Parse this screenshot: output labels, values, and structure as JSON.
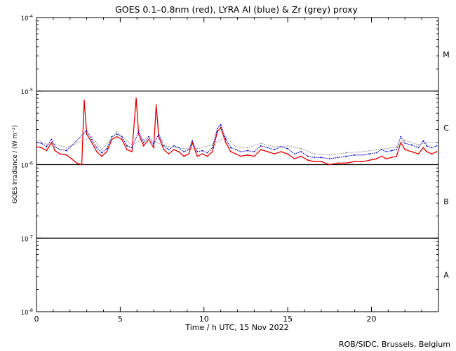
{
  "chart_data": {
    "type": "scatter",
    "title": "GOES 0.1–0.8nm (red), LYRA Al (blue) & Zr (grey) proxy",
    "xlabel": "Time / h UTC, 15 Nov 2022",
    "ylabel": "GOES Irradiance / (W m⁻²)",
    "footer": "ROB/SIDC, Brussels, Belgium",
    "xlim": [
      0,
      24
    ],
    "ylim": [
      1e-08,
      0.0001
    ],
    "yscale": "log",
    "xticks": [
      0,
      5,
      10,
      15,
      20
    ],
    "yticks": [
      {
        "value": 1e-08,
        "base": "10",
        "exp": "-8"
      },
      {
        "value": 1e-07,
        "base": "10",
        "exp": "-7"
      },
      {
        "value": 1e-06,
        "base": "10",
        "exp": "-6"
      },
      {
        "value": 1e-05,
        "base": "10",
        "exp": "-5"
      },
      {
        "value": 0.0001,
        "base": "10",
        "exp": "-4"
      }
    ],
    "thresholds": [
      1e-07,
      1e-06,
      1e-05
    ],
    "flare_classes": [
      {
        "label": "A",
        "y": 3.16e-08
      },
      {
        "label": "B",
        "y": 3.16e-07
      },
      {
        "label": "C",
        "y": 3.16e-06
      },
      {
        "label": "M",
        "y": 3.16e-05
      }
    ],
    "series": [
      {
        "name": "GOES 0.1–0.8nm",
        "color": "#e00000",
        "points": [
          [
            0.0,
            1.75e-06
          ],
          [
            0.3,
            1.7e-06
          ],
          [
            0.6,
            1.55e-06
          ],
          [
            0.9,
            2e-06
          ],
          [
            1.1,
            1.55e-06
          ],
          [
            1.4,
            1.4e-06
          ],
          [
            1.8,
            1.35e-06
          ],
          [
            2.1,
            1.2e-06
          ],
          [
            2.4,
            1.05e-06
          ],
          [
            2.7,
            1e-06
          ],
          [
            2.85,
            7.5e-06
          ],
          [
            3.0,
            2.6e-06
          ],
          [
            3.3,
            2e-06
          ],
          [
            3.6,
            1.5e-06
          ],
          [
            3.9,
            1.3e-06
          ],
          [
            4.2,
            1.5e-06
          ],
          [
            4.5,
            2.2e-06
          ],
          [
            4.8,
            2.4e-06
          ],
          [
            5.1,
            2.2e-06
          ],
          [
            5.4,
            1.6e-06
          ],
          [
            5.7,
            1.5e-06
          ],
          [
            5.95,
            8e-06
          ],
          [
            6.1,
            2.6e-06
          ],
          [
            6.4,
            1.8e-06
          ],
          [
            6.7,
            2.2e-06
          ],
          [
            7.0,
            1.7e-06
          ],
          [
            7.15,
            6.5e-06
          ],
          [
            7.3,
            2.4e-06
          ],
          [
            7.6,
            1.6e-06
          ],
          [
            7.9,
            1.4e-06
          ],
          [
            8.2,
            1.6e-06
          ],
          [
            8.5,
            1.5e-06
          ],
          [
            8.8,
            1.3e-06
          ],
          [
            9.1,
            1.4e-06
          ],
          [
            9.3,
            2e-06
          ],
          [
            9.6,
            1.3e-06
          ],
          [
            9.9,
            1.4e-06
          ],
          [
            10.2,
            1.3e-06
          ],
          [
            10.5,
            1.5e-06
          ],
          [
            10.8,
            2.8e-06
          ],
          [
            11.0,
            3.2e-06
          ],
          [
            11.3,
            2e-06
          ],
          [
            11.6,
            1.5e-06
          ],
          [
            11.9,
            1.4e-06
          ],
          [
            12.2,
            1.3e-06
          ],
          [
            12.6,
            1.35e-06
          ],
          [
            13.0,
            1.3e-06
          ],
          [
            13.4,
            1.6e-06
          ],
          [
            13.8,
            1.5e-06
          ],
          [
            14.2,
            1.4e-06
          ],
          [
            14.6,
            1.5e-06
          ],
          [
            15.0,
            1.4e-06
          ],
          [
            15.4,
            1.2e-06
          ],
          [
            15.8,
            1.3e-06
          ],
          [
            16.2,
            1.15e-06
          ],
          [
            16.6,
            1.1e-06
          ],
          [
            17.0,
            1.1e-06
          ],
          [
            17.5,
            1e-06
          ],
          [
            18.0,
            1.05e-06
          ],
          [
            18.5,
            1.05e-06
          ],
          [
            19.0,
            1.1e-06
          ],
          [
            19.5,
            1.1e-06
          ],
          [
            19.9,
            1.15e-06
          ],
          [
            20.3,
            1.2e-06
          ],
          [
            20.6,
            1.3e-06
          ],
          [
            20.9,
            1.2e-06
          ],
          [
            21.2,
            1.25e-06
          ],
          [
            21.5,
            1.3e-06
          ],
          [
            21.75,
            2e-06
          ],
          [
            22.0,
            1.6e-06
          ],
          [
            22.4,
            1.5e-06
          ],
          [
            22.8,
            1.4e-06
          ],
          [
            23.1,
            1.7e-06
          ],
          [
            23.3,
            1.5e-06
          ],
          [
            23.6,
            1.4e-06
          ],
          [
            23.9,
            1.5e-06
          ]
        ]
      },
      {
        "name": "LYRA Al",
        "color": "#0000c0",
        "points": [
          [
            0.0,
            2e-06
          ],
          [
            0.3,
            1.95e-06
          ],
          [
            0.6,
            1.75e-06
          ],
          [
            0.9,
            2.2e-06
          ],
          [
            1.1,
            1.75e-06
          ],
          [
            1.4,
            1.6e-06
          ],
          [
            1.8,
            1.55e-06
          ],
          [
            3.0,
            2.9e-06
          ],
          [
            3.3,
            2.2e-06
          ],
          [
            3.6,
            1.7e-06
          ],
          [
            3.9,
            1.45e-06
          ],
          [
            4.2,
            1.65e-06
          ],
          [
            4.5,
            2.4e-06
          ],
          [
            4.8,
            2.6e-06
          ],
          [
            5.1,
            2.4e-06
          ],
          [
            5.4,
            1.8e-06
          ],
          [
            5.7,
            1.7e-06
          ],
          [
            6.1,
            2.8e-06
          ],
          [
            6.4,
            2e-06
          ],
          [
            6.7,
            2.4e-06
          ],
          [
            7.0,
            1.9e-06
          ],
          [
            7.3,
            2.6e-06
          ],
          [
            7.6,
            1.8e-06
          ],
          [
            7.9,
            1.6e-06
          ],
          [
            8.2,
            1.8e-06
          ],
          [
            8.5,
            1.7e-06
          ],
          [
            8.8,
            1.5e-06
          ],
          [
            9.1,
            1.6e-06
          ],
          [
            9.3,
            2.1e-06
          ],
          [
            9.6,
            1.5e-06
          ],
          [
            9.9,
            1.55e-06
          ],
          [
            10.2,
            1.45e-06
          ],
          [
            10.5,
            1.7e-06
          ],
          [
            10.8,
            3.1e-06
          ],
          [
            11.0,
            3.5e-06
          ],
          [
            11.3,
            2.2e-06
          ],
          [
            11.6,
            1.7e-06
          ],
          [
            11.9,
            1.6e-06
          ],
          [
            12.2,
            1.5e-06
          ],
          [
            12.6,
            1.55e-06
          ],
          [
            13.0,
            1.5e-06
          ],
          [
            13.4,
            1.8e-06
          ],
          [
            13.8,
            1.7e-06
          ],
          [
            14.2,
            1.6e-06
          ],
          [
            14.6,
            1.75e-06
          ],
          [
            15.0,
            1.65e-06
          ],
          [
            15.4,
            1.4e-06
          ],
          [
            15.8,
            1.5e-06
          ],
          [
            16.2,
            1.3e-06
          ],
          [
            16.6,
            1.25e-06
          ],
          [
            17.0,
            1.25e-06
          ],
          [
            17.5,
            1.2e-06
          ],
          [
            18.0,
            1.25e-06
          ],
          [
            18.5,
            1.3e-06
          ],
          [
            19.0,
            1.35e-06
          ],
          [
            19.5,
            1.35e-06
          ],
          [
            19.9,
            1.4e-06
          ],
          [
            20.3,
            1.45e-06
          ],
          [
            20.6,
            1.6e-06
          ],
          [
            20.9,
            1.5e-06
          ],
          [
            21.2,
            1.55e-06
          ],
          [
            21.5,
            1.6e-06
          ],
          [
            21.75,
            2.4e-06
          ],
          [
            22.0,
            1.95e-06
          ],
          [
            22.4,
            1.85e-06
          ],
          [
            22.8,
            1.7e-06
          ],
          [
            23.1,
            2.1e-06
          ],
          [
            23.3,
            1.8e-06
          ],
          [
            23.6,
            1.7e-06
          ],
          [
            23.9,
            1.8e-06
          ]
        ]
      },
      {
        "name": "Zr",
        "color": "#9a9a9a",
        "points": [
          [
            0.0,
            2.2e-06
          ],
          [
            0.6,
            1.9e-06
          ],
          [
            1.1,
            1.9e-06
          ],
          [
            1.8,
            1.7e-06
          ],
          [
            3.3,
            2.4e-06
          ],
          [
            3.9,
            1.6e-06
          ],
          [
            4.8,
            2.8e-06
          ],
          [
            5.7,
            1.85e-06
          ],
          [
            6.4,
            2.2e-06
          ],
          [
            7.0,
            2.05e-06
          ],
          [
            7.9,
            1.75e-06
          ],
          [
            8.8,
            1.65e-06
          ],
          [
            9.6,
            1.65e-06
          ],
          [
            10.5,
            1.85e-06
          ],
          [
            11.3,
            2.4e-06
          ],
          [
            11.9,
            1.75e-06
          ],
          [
            12.6,
            1.7e-06
          ],
          [
            13.4,
            1.95e-06
          ],
          [
            14.2,
            1.75e-06
          ],
          [
            15.0,
            1.8e-06
          ],
          [
            15.8,
            1.65e-06
          ],
          [
            16.6,
            1.4e-06
          ],
          [
            17.5,
            1.35e-06
          ],
          [
            18.5,
            1.45e-06
          ],
          [
            19.5,
            1.5e-06
          ],
          [
            20.3,
            1.6e-06
          ],
          [
            20.9,
            1.65e-06
          ],
          [
            21.5,
            1.75e-06
          ],
          [
            22.0,
            2.15e-06
          ],
          [
            22.8,
            1.85e-06
          ],
          [
            23.3,
            2e-06
          ],
          [
            23.9,
            2e-06
          ]
        ]
      }
    ]
  }
}
